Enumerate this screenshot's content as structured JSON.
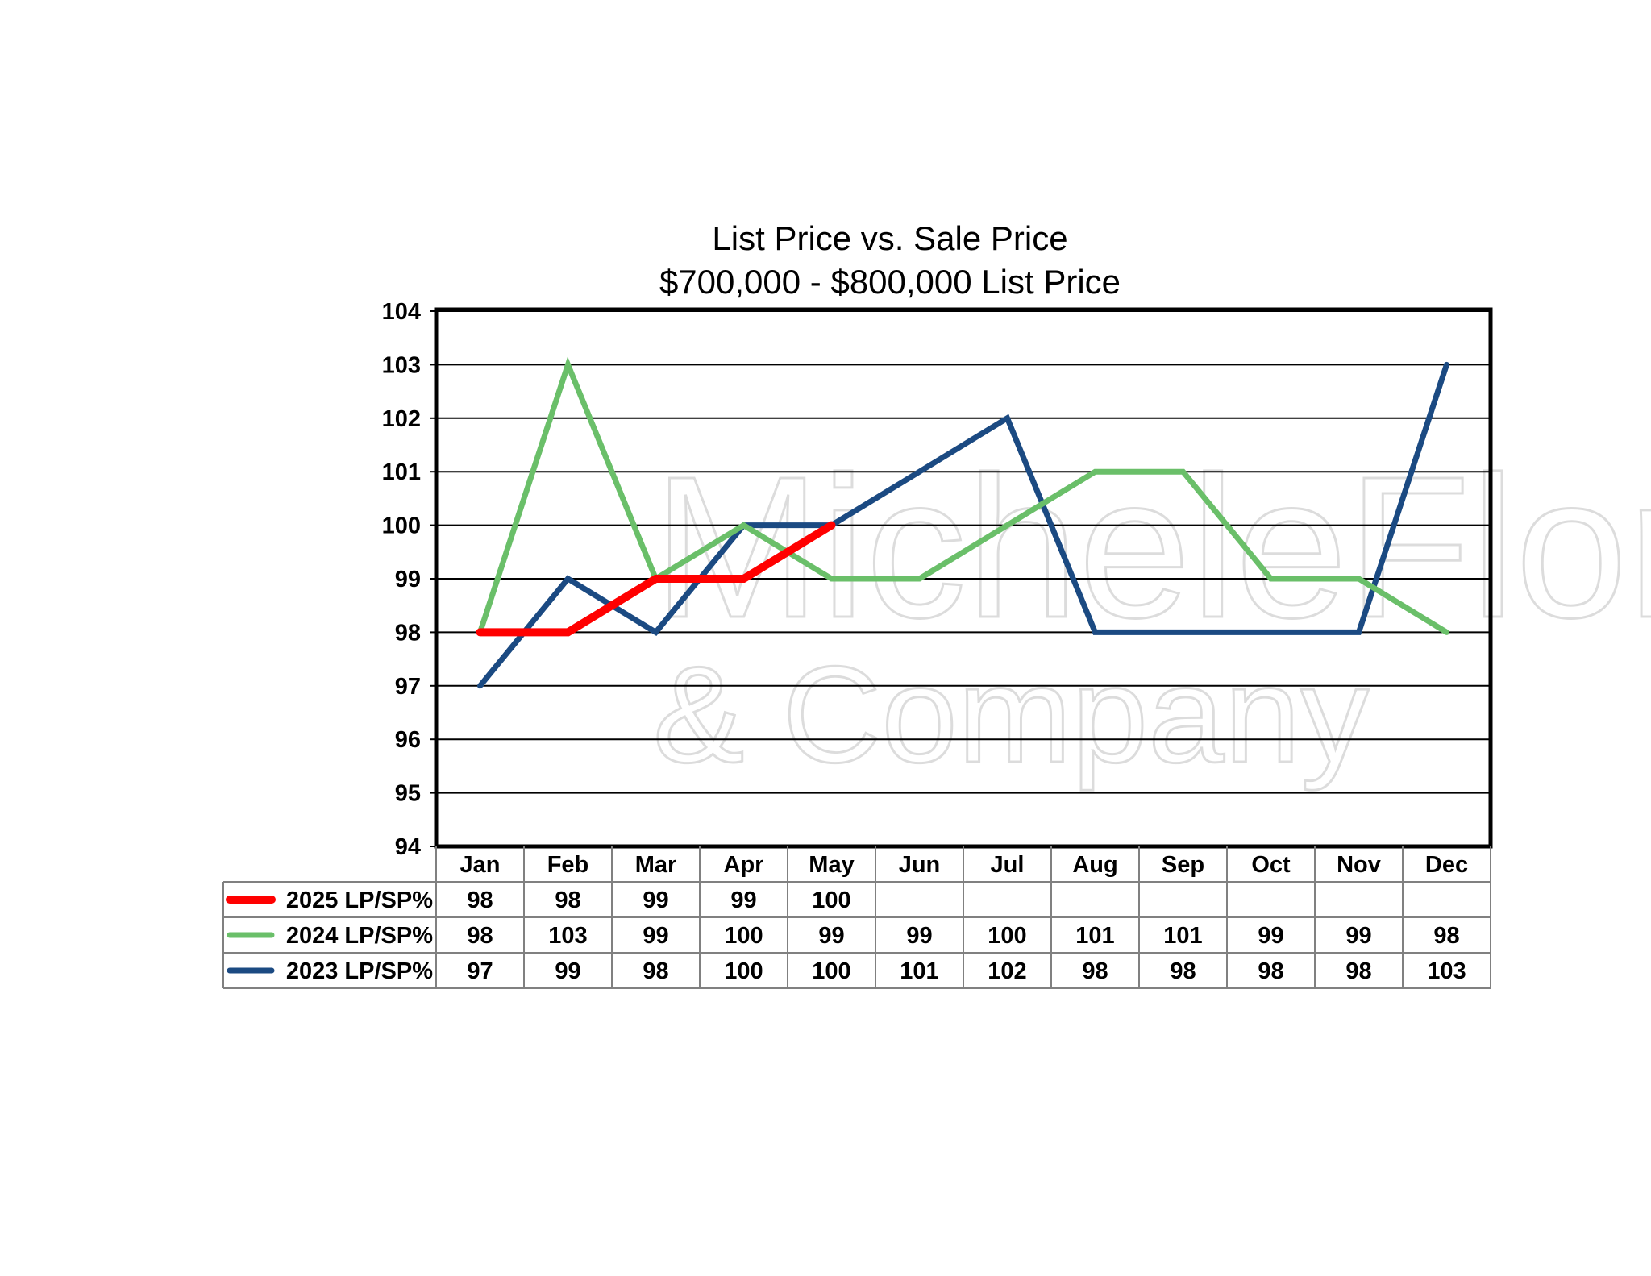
{
  "chart_data": {
    "type": "line",
    "title": "List Price vs. Sale Price",
    "subtitle": "$700,000 - $800,000 List Price",
    "categories": [
      "Jan",
      "Feb",
      "Mar",
      "Apr",
      "May",
      "Jun",
      "Jul",
      "Aug",
      "Sep",
      "Oct",
      "Nov",
      "Dec"
    ],
    "y_ticks": [
      "94",
      "95",
      "96",
      "97",
      "98",
      "99",
      "100",
      "101",
      "102",
      "103",
      "104"
    ],
    "ylim": [
      94,
      104
    ],
    "grid": true,
    "legend": "data-table-below",
    "series": [
      {
        "name": "2025 LP/SP%",
        "color": "#ff0000",
        "values": [
          98,
          98,
          99,
          99,
          100,
          null,
          null,
          null,
          null,
          null,
          null,
          null
        ]
      },
      {
        "name": "2024 LP/SP%",
        "color": "#6abf69",
        "values": [
          98,
          103,
          99,
          100,
          99,
          99,
          100,
          101,
          101,
          99,
          99,
          98
        ]
      },
      {
        "name": "2023 LP/SP%",
        "color": "#1b4a82",
        "values": [
          97,
          99,
          98,
          100,
          100,
          101,
          102,
          98,
          98,
          98,
          98,
          103
        ]
      }
    ]
  },
  "watermark": {
    "line1": "MicheleFlory",
    "line2": "& Company"
  }
}
